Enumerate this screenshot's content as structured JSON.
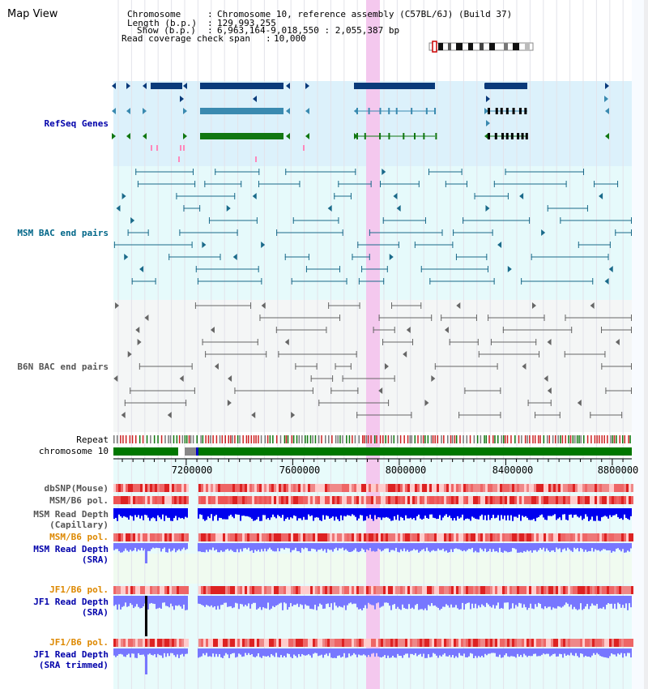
{
  "page": {
    "title": "Map View"
  },
  "info": {
    "chromosome_label": "Chromosome",
    "chromosome_value": "Chromosome 10, reference assembly (C57BL/6J) (Build 37)",
    "length_label": "Length (b.p.)",
    "length_value": "129,993,255",
    "show_label": "Show (b.p.)",
    "show_value": "6,963,164-9,018,550 : 2,055,387 bp",
    "coverage_label": "Read coverage check span",
    "coverage_value": "10,000"
  },
  "tracks": {
    "refseq": "RefSeq Genes",
    "msm_bac": "MSM BAC end pairs",
    "b6n_bac": "B6N BAC end pairs",
    "repeat": "Repeat",
    "chrom": "chromosome 10",
    "dbsnp": "dbSNP(Mouse)",
    "msm_pol": "MSM/B6 pol.",
    "msm_depth_cap": "MSM Read Depth",
    "msm_depth_cap_sub": "(Capillary)",
    "msm_pol_2": "MSM/B6 pol.",
    "msm_depth_sra": "MSM Read Depth",
    "msm_depth_sra_sub": "(SRA)",
    "jf1_pol": "JF1/B6 pol.",
    "jf1_depth_sra": "JF1 Read Depth",
    "jf1_depth_sra_sub": "(SRA)",
    "jf1_pol_2": "JF1/B6 pol.",
    "jf1_depth_trim": "JF1 Read Depth",
    "jf1_depth_trim_sub": "(SRA trimmed)"
  },
  "ruler": {
    "ticks": [
      "7200000",
      "7600000",
      "8000000",
      "8400000",
      "8800000"
    ]
  },
  "colors": {
    "refseq_dark": "#0a3a7a",
    "refseq_mid": "#3a8ab0",
    "refseq_green": "#117711",
    "msm_bac": "#1a6a8a",
    "b6n_bac": "#666666",
    "highlight": "#f4c8ee",
    "depth_blue": "#0000ee",
    "depth_light": "#7777ff",
    "pol_red": "#ee3333",
    "chrom_green": "#007700"
  }
}
